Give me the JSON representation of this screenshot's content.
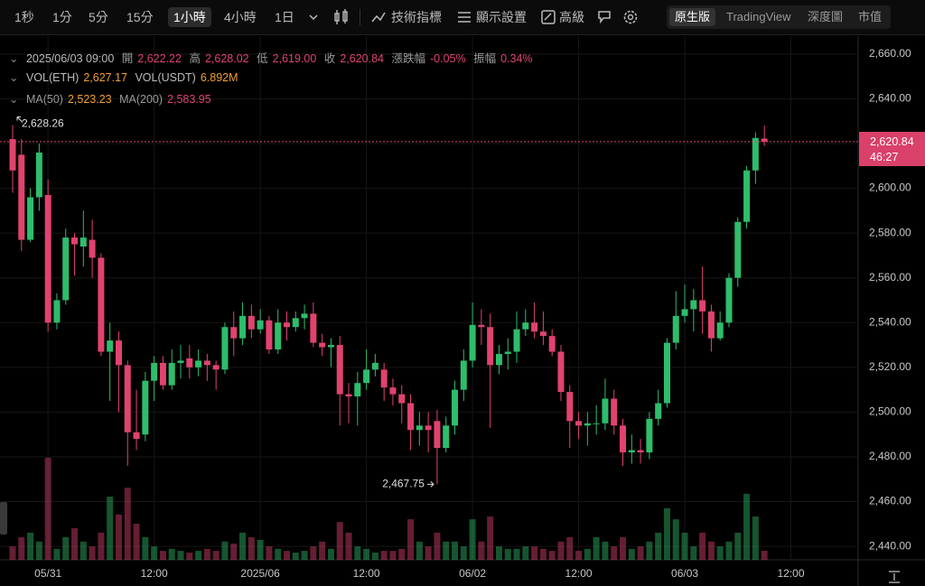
{
  "toolbar": {
    "intervals": [
      "1秒",
      "1分",
      "5分",
      "15分",
      "1小時",
      "4小時",
      "1日"
    ],
    "tools": [
      "技術指標",
      "顯示設置",
      "高級"
    ],
    "views": [
      "原生版",
      "TradingView",
      "深度圖",
      "市值"
    ]
  },
  "chart_data": {
    "type": "candlestick",
    "info": {
      "time": "2025/06/03 09:00",
      "ohlc": [
        {
          "label": "開",
          "value": "2,622.22"
        },
        {
          "label": "高",
          "value": "2,628.02"
        },
        {
          "label": "低",
          "value": "2,619.00"
        },
        {
          "label": "收",
          "value": "2,620.84"
        },
        {
          "label": "漲跌幅",
          "value": "-0.05%"
        },
        {
          "label": "振幅",
          "value": "0.34%"
        }
      ],
      "volume": [
        {
          "label": "VOL(ETH)",
          "value": "2,627.17"
        },
        {
          "label": "VOL(USDT)",
          "value": "6.892M"
        }
      ],
      "ma": [
        {
          "label": "MA(50)",
          "value": "2,523.23"
        },
        {
          "label": "MA(200)",
          "value": "2,583.95"
        }
      ]
    },
    "last_price": {
      "label": "2,620.84",
      "countdown": "46:27"
    },
    "high_marker": "2,628.26",
    "low_marker": "2,467.75",
    "up_color": "#2ebd6b",
    "down_color": "#e0436e",
    "grid": true,
    "ylim": [
      2434,
      2666
    ],
    "yticks": [
      {
        "value": 2440,
        "label": "2,440.00"
      },
      {
        "value": 2460,
        "label": "2,460.00"
      },
      {
        "value": 2480,
        "label": "2,480.00"
      },
      {
        "value": 2500,
        "label": "2,500.00"
      },
      {
        "value": 2520,
        "label": "2,520.00"
      },
      {
        "value": 2540,
        "label": "2,540.00"
      },
      {
        "value": 2560,
        "label": "2,560.00"
      },
      {
        "value": 2580,
        "label": "2,580.00"
      },
      {
        "value": 2600,
        "label": "2,600.00"
      },
      {
        "value": 2620,
        "label": "2,620.00"
      },
      {
        "value": 2640,
        "label": "2,640.00"
      },
      {
        "value": 2660,
        "label": "2,660.00"
      }
    ],
    "categories": [
      null,
      null,
      null,
      null,
      "05/31",
      null,
      null,
      null,
      null,
      null,
      null,
      null,
      null,
      null,
      null,
      null,
      "12:00",
      null,
      null,
      null,
      null,
      null,
      null,
      null,
      null,
      null,
      null,
      null,
      "2025/06",
      null,
      null,
      null,
      null,
      null,
      null,
      null,
      null,
      null,
      null,
      null,
      "12:00",
      null,
      null,
      null,
      null,
      null,
      null,
      null,
      null,
      null,
      null,
      null,
      "06/02",
      null,
      null,
      null,
      null,
      null,
      null,
      null,
      null,
      null,
      null,
      null,
      "12:00",
      null,
      null,
      null,
      null,
      null,
      null,
      null,
      null,
      null,
      null,
      null,
      "06/03",
      null,
      null,
      null,
      null,
      null,
      null,
      null,
      null,
      null,
      null,
      null,
      "12:00",
      null,
      null,
      null,
      null,
      null,
      null,
      null
    ],
    "open": [
      2622,
      2615,
      2577,
      2596,
      2597,
      2540,
      2550,
      2578,
      2574,
      2577,
      2569,
      2527,
      2532,
      2521,
      2491,
      2490,
      2514,
      2522,
      2512,
      2522,
      2524,
      2520,
      2523,
      2521,
      2519,
      2538,
      2533,
      2543,
      2537,
      2541,
      2528,
      2540,
      2538,
      2542,
      2544,
      2531,
      2529,
      2530,
      2508,
      2507,
      2513,
      2519,
      2519,
      2511,
      2508,
      2504,
      2492,
      2494,
      2496,
      2484,
      2494,
      2510,
      2523,
      2539,
      2538,
      2521,
      2526,
      2527,
      2537,
      2540,
      2536,
      2534,
      2527,
      2509,
      2496,
      2494,
      2495,
      2495,
      2506,
      2494,
      2482,
      2483,
      2482,
      2497,
      2504,
      2531,
      2543,
      2546,
      2550,
      2545,
      2533,
      2540,
      2560,
      2585,
      2608,
      2622.22,
      null,
      null,
      null,
      null,
      null,
      null,
      null,
      null,
      null,
      null
    ],
    "high": [
      2628.26,
      2622,
      2600,
      2620,
      2604,
      2553,
      2582,
      2580,
      2590,
      2586,
      2571,
      2540,
      2536,
      2523,
      2510,
      2518,
      2525,
      2525,
      2528,
      2530,
      2530,
      2528,
      2526,
      2523,
      2540,
      2545,
      2549,
      2548,
      2546,
      2543,
      2546,
      2545,
      2545,
      2548,
      2549,
      2535,
      2533,
      2534,
      2513,
      2518,
      2528,
      2526,
      2522,
      2515,
      2512,
      2508,
      2500,
      2500,
      2501,
      2498,
      2514,
      2528,
      2549,
      2546,
      2544,
      2530,
      2533,
      2545,
      2546,
      2549,
      2545,
      2537,
      2530,
      2512,
      2500,
      2500,
      2503,
      2515,
      2510,
      2497,
      2490,
      2488,
      2500,
      2510,
      2533,
      2554,
      2557,
      2555,
      2565,
      2548,
      2545,
      2562,
      2587,
      2610,
      2625,
      2628.02,
      null,
      null,
      null,
      null,
      null,
      null,
      null,
      null,
      null,
      null
    ],
    "low": [
      2598,
      2572,
      2576,
      2590,
      2536,
      2537,
      2548,
      2561,
      2565,
      2560,
      2525,
      2505,
      2500,
      2476,
      2483,
      2487,
      2505,
      2510,
      2510,
      2515,
      2515,
      2516,
      2514,
      2510,
      2517,
      2525,
      2530,
      2533,
      2535,
      2526,
      2526,
      2532,
      2536,
      2537,
      2529,
      2525,
      2520,
      2494,
      2495,
      2494,
      2510,
      2516,
      2505,
      2503,
      2495,
      2483,
      2485,
      2482,
      2467.75,
      2482,
      2490,
      2505,
      2520,
      2530,
      2493,
      2517,
      2519,
      2522,
      2534,
      2533,
      2530,
      2525,
      2505,
      2484,
      2488,
      2485,
      2490,
      2492,
      2490,
      2476,
      2477,
      2477,
      2479,
      2494,
      2502,
      2528,
      2540,
      2536,
      2535,
      2527,
      2532,
      2538,
      2556,
      2582,
      2602,
      2619.0,
      null,
      null,
      null,
      null,
      null,
      null,
      null,
      null,
      null,
      null
    ],
    "close": [
      2608,
      2577,
      2596,
      2616,
      2540,
      2550,
      2578,
      2575,
      2578,
      2569,
      2527,
      2532,
      2521,
      2491,
      2488,
      2514,
      2522,
      2512,
      2522,
      2523,
      2520,
      2523,
      2521,
      2519,
      2538,
      2533,
      2543,
      2537,
      2541,
      2528,
      2540,
      2538,
      2542,
      2544,
      2531,
      2529,
      2530,
      2508,
      2507,
      2513,
      2519,
      2522,
      2511,
      2508,
      2504,
      2492,
      2494,
      2492,
      2484,
      2494,
      2510,
      2523,
      2539,
      2538,
      2521,
      2526,
      2527,
      2537,
      2540,
      2536,
      2534,
      2527,
      2509,
      2496,
      2494,
      2495,
      2495,
      2506,
      2494,
      2482,
      2483,
      2482,
      2497,
      2504,
      2531,
      2543,
      2546,
      2550,
      2545,
      2533,
      2540,
      2560,
      2585,
      2608,
      2622.5,
      2620.84,
      null,
      null,
      null,
      null,
      null,
      null,
      null,
      null,
      null,
      null
    ],
    "volume": [
      3900,
      6600,
      7900,
      5300,
      29700,
      3200,
      6600,
      9200,
      5300,
      3900,
      7900,
      18400,
      13200,
      21000,
      10500,
      6600,
      3900,
      2600,
      3200,
      2600,
      2100,
      2600,
      3200,
      2600,
      5300,
      4700,
      7900,
      6600,
      5800,
      3900,
      3200,
      2600,
      2100,
      2600,
      3900,
      5300,
      3200,
      11000,
      7900,
      3900,
      3200,
      2100,
      2600,
      2600,
      3200,
      11800,
      5300,
      3900,
      7900,
      5300,
      5300,
      3900,
      11800,
      5300,
      12600,
      3900,
      3200,
      3200,
      3900,
      3900,
      3200,
      2600,
      5300,
      6600,
      2600,
      3200,
      6600,
      5300,
      3900,
      6600,
      3200,
      3900,
      5300,
      7900,
      15000,
      11800,
      7900,
      3900,
      7900,
      5300,
      3900,
      5300,
      7900,
      19200,
      12600,
      2627.17,
      null,
      null,
      null,
      null,
      null,
      null,
      null,
      null,
      null,
      null
    ]
  }
}
